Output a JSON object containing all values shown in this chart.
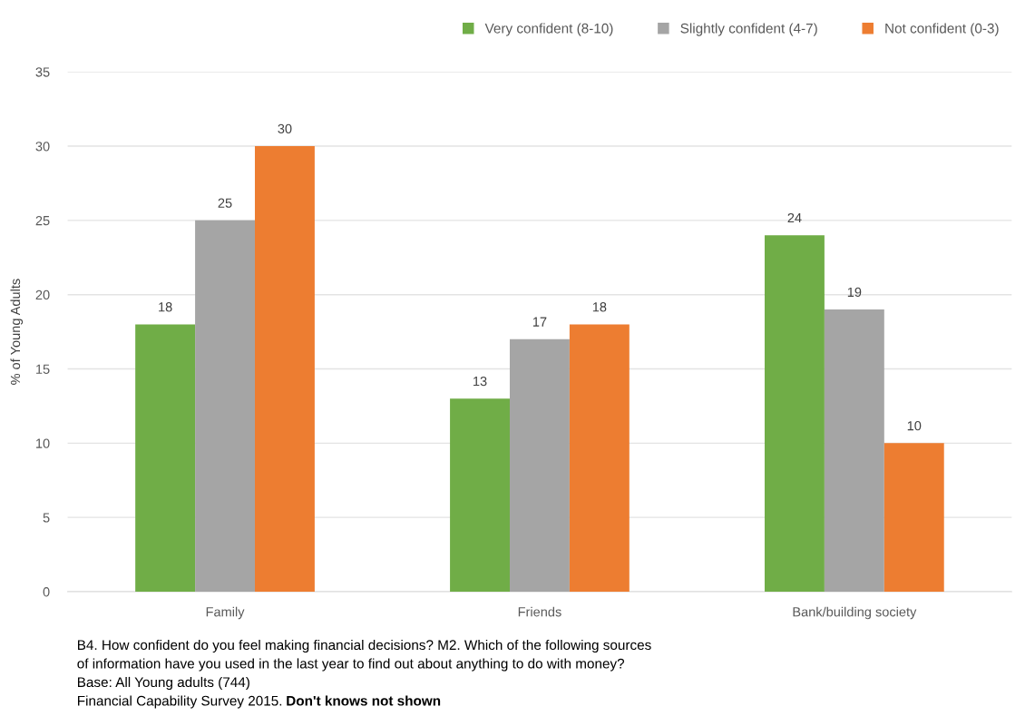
{
  "chart_data": {
    "type": "bar",
    "ylabel": "% of Young Adults",
    "categories": [
      "Family",
      "Friends",
      "Bank/building society"
    ],
    "series": [
      {
        "name": "Very confident (8-10)",
        "color": "#70ad47",
        "values": [
          18,
          13,
          24
        ]
      },
      {
        "name": "Slightly confident (4-7)",
        "color": "#a5a5a5",
        "values": [
          25,
          17,
          19
        ]
      },
      {
        "name": "Not confident (0-3)",
        "color": "#ed7d31",
        "values": [
          30,
          18,
          10
        ]
      }
    ],
    "ylim": [
      0,
      35
    ],
    "yticks": [
      0,
      5,
      10,
      15,
      20,
      25,
      30,
      35
    ],
    "grid": "y",
    "legend": "top right",
    "data_labels": true,
    "annotations": [
      "B4. How confident do you feel making financial decisions? M2. Which of the following sources",
      "of information have you used in the last year to find out about anything to do with money?",
      "Base: All Young adults (744)",
      "Financial Capability Survey 2015. ",
      "Don't knows not shown"
    ]
  }
}
